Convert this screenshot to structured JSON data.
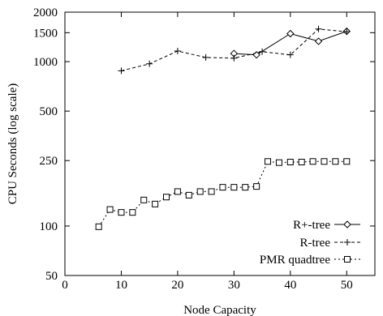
{
  "chart_data": {
    "type": "line",
    "xlabel": "Node Capacity",
    "ylabel": "CPU Seconds (log scale)",
    "xlim": [
      0,
      55
    ],
    "ylim": [
      50,
      2000
    ],
    "yscale": "log",
    "grid": false,
    "legend_position": "bottom-right",
    "x_ticks": [
      0,
      10,
      20,
      30,
      40,
      50
    ],
    "y_ticks": [
      50,
      100,
      250,
      500,
      1000,
      1500,
      2000
    ],
    "series": [
      {
        "name": "R+-tree",
        "marker": "diamond",
        "line_style": "solid",
        "x": [
          30,
          34,
          40,
          45,
          50
        ],
        "y": [
          1120,
          1100,
          1480,
          1330,
          1530
        ]
      },
      {
        "name": "R-tree",
        "marker": "plus",
        "line_style": "dashed",
        "x": [
          10,
          15,
          20,
          25,
          30,
          35,
          40,
          45,
          50
        ],
        "y": [
          880,
          970,
          1160,
          1060,
          1050,
          1150,
          1100,
          1580,
          1520
        ]
      },
      {
        "name": "PMR quadtree",
        "marker": "square",
        "line_style": "dotted",
        "x": [
          6,
          8,
          10,
          12,
          14,
          16,
          18,
          20,
          22,
          24,
          26,
          28,
          30,
          32,
          34,
          36,
          38,
          40,
          42,
          44,
          46,
          48,
          50
        ],
        "y": [
          99,
          126,
          121,
          121,
          144,
          136,
          150,
          162,
          154,
          162,
          162,
          172,
          172,
          172,
          174,
          247,
          243,
          245,
          245,
          247,
          247,
          247,
          247
        ]
      }
    ]
  }
}
